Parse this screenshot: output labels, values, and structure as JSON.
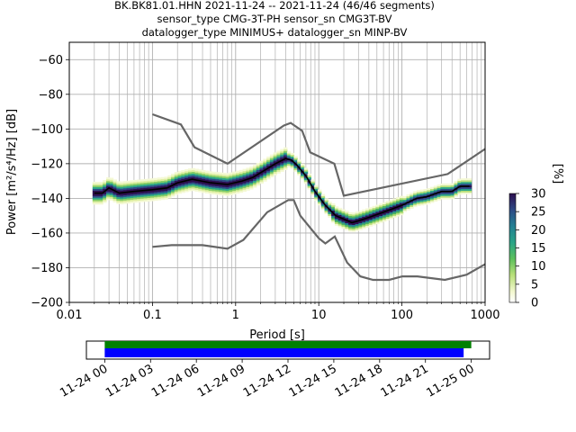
{
  "header": {
    "line1": "BK.BK81.01.HHN   2021-11-24 -- 2021-11-24  (46/46 segments)",
    "line2": "sensor_type CMG-3T-PH sensor_sn CMG3T-BV",
    "line3": "datalogger_type MINIMUS+ datalogger_sn MINP-BV"
  },
  "colors": {
    "noise_model": "#666666",
    "mean_line": "#000000",
    "grid": "#b0b0b0",
    "bar_available": "#008000",
    "bar_segments": "#0000ff"
  },
  "chart_data": [
    {
      "type": "heatmap",
      "title": "",
      "xlabel": "Period [s]",
      "ylabel": "Power [m²/s⁴/Hz] [dB]",
      "x_scale": "log",
      "xlim": [
        0.01,
        1000
      ],
      "ylim": [
        -200,
        -50
      ],
      "grid": true,
      "x_ticks": [
        0.01,
        0.1,
        1,
        10,
        100,
        1000
      ],
      "x_tick_labels": [
        "0.01",
        "0.1",
        "1",
        "10",
        "100",
        "1000"
      ],
      "y_ticks": [
        -200,
        -180,
        -160,
        -140,
        -120,
        -100,
        -80,
        -60
      ],
      "y_tick_labels": [
        "−200",
        "−180",
        "−160",
        "−140",
        "−120",
        "−100",
        "−80",
        "−60"
      ],
      "colorbar": {
        "label": "[%]",
        "min": 0,
        "max": 30,
        "ticks": [
          0,
          5,
          10,
          15,
          20,
          25,
          30
        ],
        "tick_labels": [
          "0",
          "5",
          "10",
          "15",
          "20",
          "25",
          "30"
        ]
      },
      "series": [
        {
          "role": "mean",
          "x": [
            0.02,
            0.025,
            0.03,
            0.04,
            0.06,
            0.1,
            0.15,
            0.2,
            0.3,
            0.5,
            0.8,
            1.2,
            1.6,
            2.2,
            3,
            4,
            4.7,
            5.5,
            7,
            9,
            12,
            16,
            20,
            25,
            30,
            40,
            60,
            100,
            150,
            200,
            300,
            400,
            500,
            650
          ],
          "y": [
            -137,
            -137,
            -134,
            -137,
            -136,
            -135,
            -134,
            -131,
            -129,
            -131,
            -132,
            -130,
            -128,
            -124,
            -120,
            -117,
            -118,
            -121,
            -127,
            -136,
            -144,
            -150,
            -152,
            -154,
            -153,
            -151,
            -148,
            -144,
            -140,
            -139,
            -136,
            -136,
            -133,
            -133
          ]
        },
        {
          "role": "high-noise-model",
          "x": [
            0.1,
            0.22,
            0.32,
            0.8,
            3.8,
            4.6,
            6.3,
            7.9,
            15.4,
            20,
            354.8,
            1000
          ],
          "y": [
            -91.5,
            -97.4,
            -110.5,
            -120,
            -98,
            -96.5,
            -101,
            -113.5,
            -120,
            -138.5,
            -126,
            -111.5
          ]
        },
        {
          "role": "low-noise-model",
          "x": [
            0.1,
            0.17,
            0.4,
            0.8,
            1.24,
            2.4,
            4.3,
            5,
            6,
            10,
            12,
            15.6,
            21.9,
            31.6,
            45,
            70,
            101,
            154,
            328,
            600,
            1000
          ],
          "y": [
            -168,
            -167,
            -167,
            -169,
            -164,
            -148,
            -141,
            -141,
            -150,
            -163,
            -166,
            -162,
            -177,
            -185,
            -187,
            -187,
            -185,
            -185,
            -187,
            -184,
            -178
          ]
        }
      ]
    },
    {
      "type": "bar",
      "title": "",
      "x_ticks": [
        "11-24 00",
        "11-24 03",
        "11-24 06",
        "11-24 09",
        "11-24 12",
        "11-24 15",
        "11-24 18",
        "11-24 21",
        "11-25 00"
      ],
      "x_range_hours": [
        -1.2,
        25.2
      ],
      "series": [
        {
          "role": "data-available",
          "start_hour": 0,
          "end_hour": 24.0
        },
        {
          "role": "psd-segments",
          "start_hour": 0,
          "end_hour": 23.5
        }
      ]
    }
  ]
}
